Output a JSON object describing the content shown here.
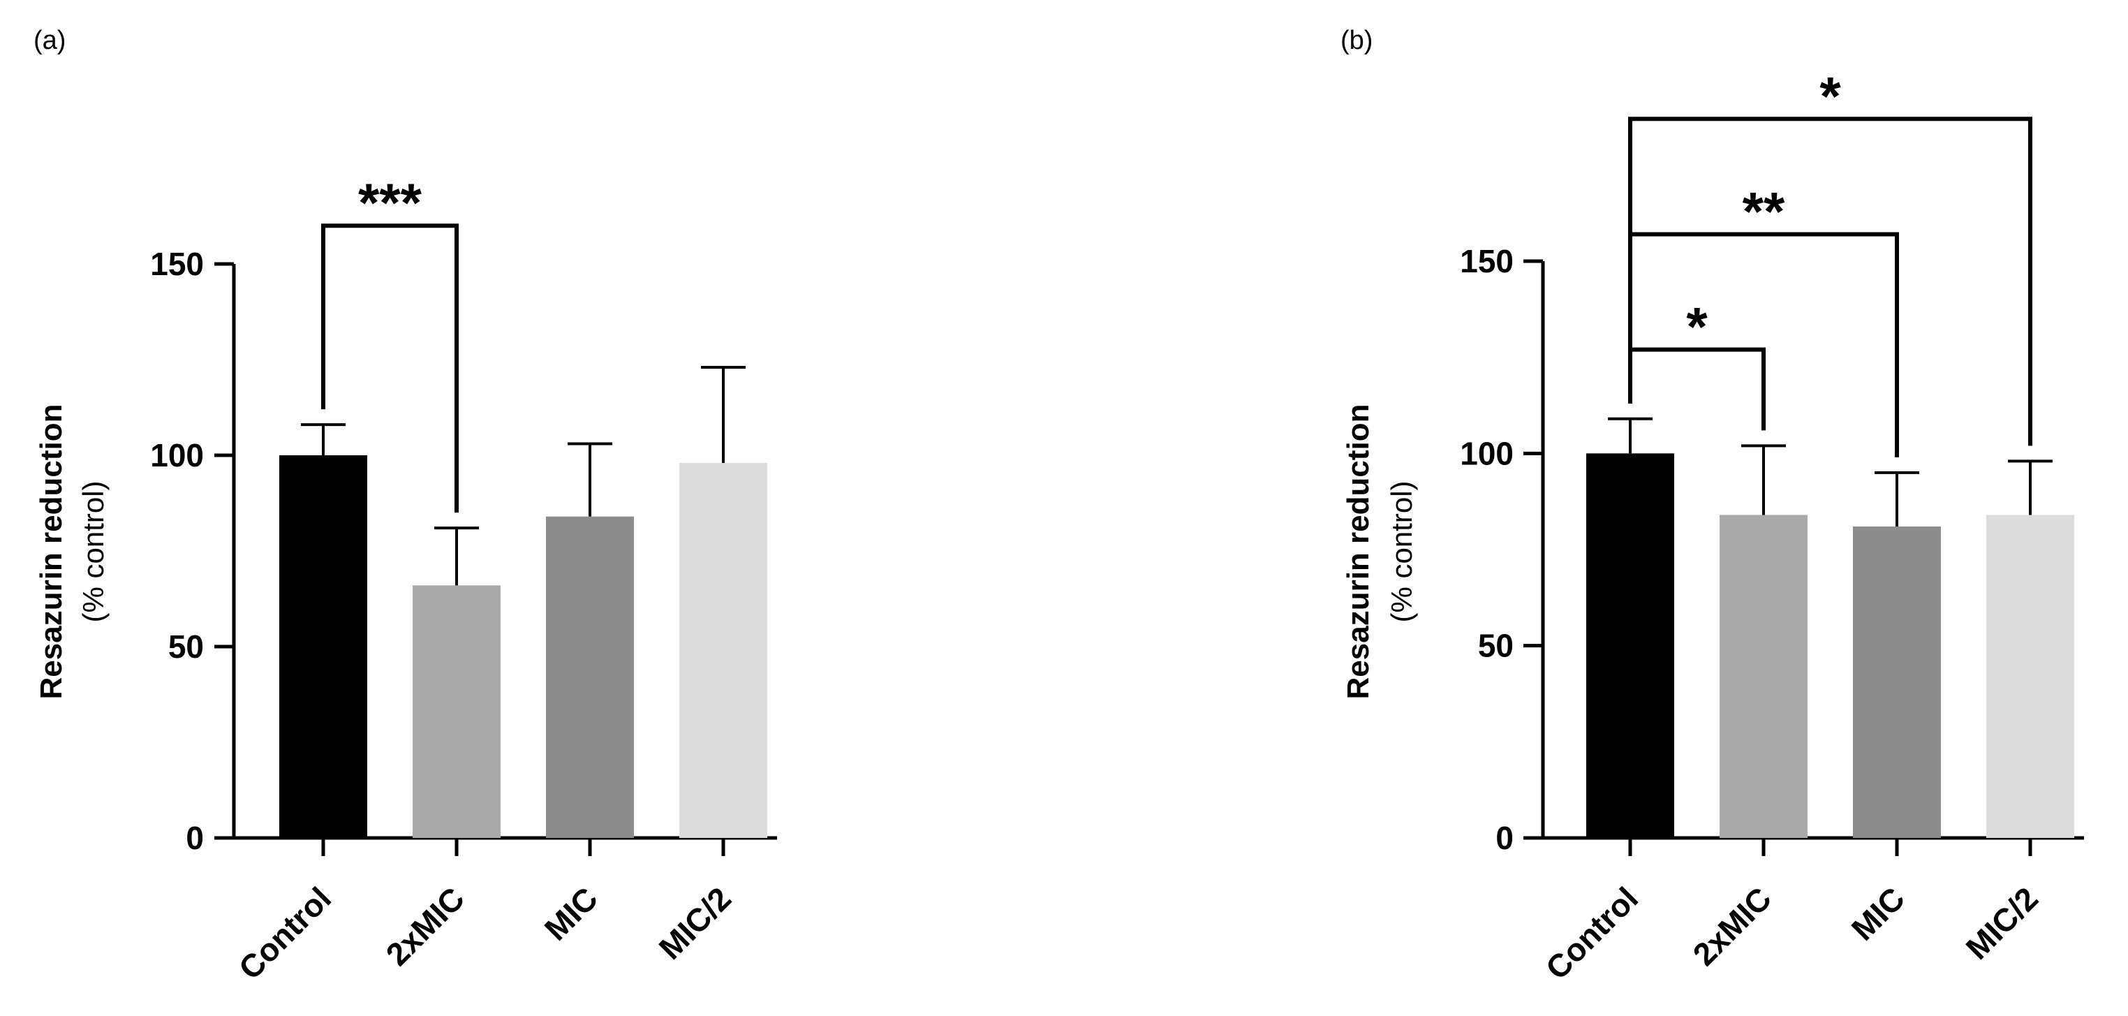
{
  "chart_data": [
    {
      "type": "bar",
      "panel_label": "(a)",
      "categories": [
        "Control",
        "2xMIC",
        "MIC",
        "MIC/2"
      ],
      "values": [
        100,
        66,
        84,
        98
      ],
      "errors": [
        8,
        15,
        19,
        25
      ],
      "colors": [
        "#000000",
        "#aaaaaa",
        "#8c8c8c",
        "#dcdcdc"
      ],
      "ylabel": "Resazurin reduction",
      "ylabel_sub": "(% control)",
      "ylim": [
        0,
        150
      ],
      "yticks": [
        0,
        50,
        100,
        150
      ],
      "ytick_labels": [
        "0",
        "50",
        "100",
        "150"
      ],
      "significance": [
        {
          "from": 0,
          "to": 1,
          "label": "***",
          "level": 160
        }
      ]
    },
    {
      "type": "bar",
      "panel_label": "(b)",
      "categories": [
        "Control",
        "2xMIC",
        "MIC",
        "MIC/2"
      ],
      "values": [
        100,
        84,
        81,
        84
      ],
      "errors": [
        9,
        18,
        14,
        14
      ],
      "colors": [
        "#000000",
        "#aaaaaa",
        "#8c8c8c",
        "#dcdcdc"
      ],
      "ylabel": "Resazurin reduction",
      "ylabel_sub": "(% control)",
      "ylim": [
        0,
        150
      ],
      "yticks": [
        0,
        50,
        100,
        150
      ],
      "ytick_labels": [
        "0",
        "50",
        "100",
        "150"
      ],
      "significance": [
        {
          "from": 0,
          "to": 1,
          "label": "*",
          "level": 127
        },
        {
          "from": 0,
          "to": 2,
          "label": "**",
          "level": 157
        },
        {
          "from": 0,
          "to": 3,
          "label": "*",
          "level": 187
        }
      ]
    }
  ]
}
